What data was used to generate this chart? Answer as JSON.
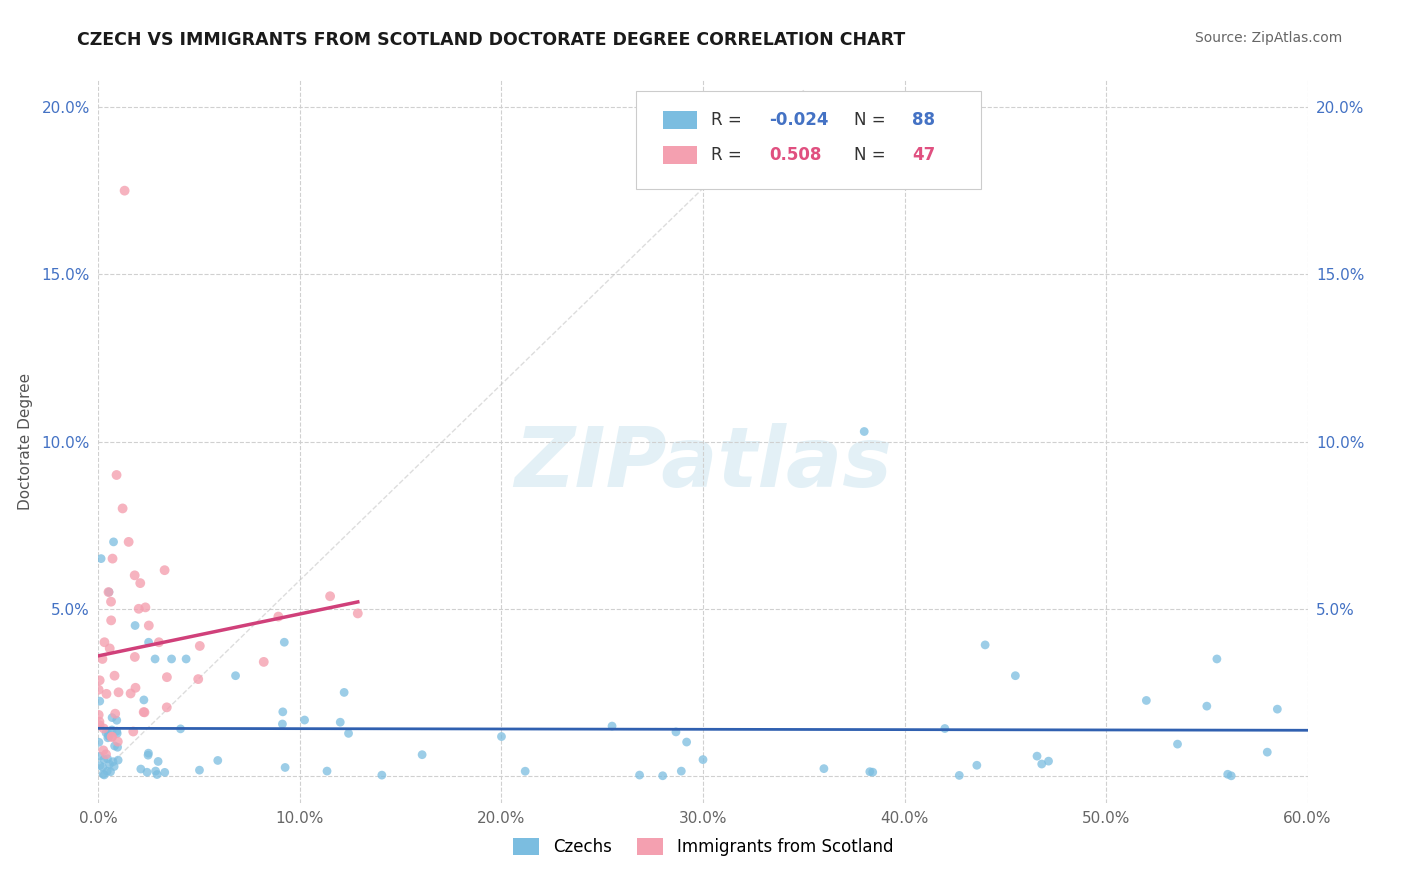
{
  "title": "CZECH VS IMMIGRANTS FROM SCOTLAND DOCTORATE DEGREE CORRELATION CHART",
  "source": "Source: ZipAtlas.com",
  "ylabel": "Doctorate Degree",
  "xlim": [
    0.0,
    0.6
  ],
  "ylim": [
    -0.008,
    0.208
  ],
  "xticks": [
    0.0,
    0.1,
    0.2,
    0.3,
    0.4,
    0.5,
    0.6
  ],
  "yticks": [
    0.0,
    0.05,
    0.1,
    0.15,
    0.2
  ],
  "xtick_labels": [
    "0.0%",
    "10.0%",
    "20.0%",
    "30.0%",
    "40.0%",
    "50.0%",
    "60.0%"
  ],
  "ytick_labels": [
    "",
    "5.0%",
    "10.0%",
    "15.0%",
    "20.0%"
  ],
  "czech_color": "#7bbde0",
  "scotland_color": "#f4a0b0",
  "czech_line_color": "#3060b0",
  "scotland_line_color": "#d0407a",
  "czech_R": -0.024,
  "czech_N": 88,
  "scotland_R": 0.508,
  "scotland_N": 47,
  "watermark": "ZIPatlas",
  "background_color": "#ffffff",
  "grid_color": "#d0d0d0",
  "legend_R_color_czech": "#4472c4",
  "legend_R_color_scot": "#e05080",
  "legend_N_color_czech": "#4472c4",
  "legend_N_color_scot": "#e05080"
}
